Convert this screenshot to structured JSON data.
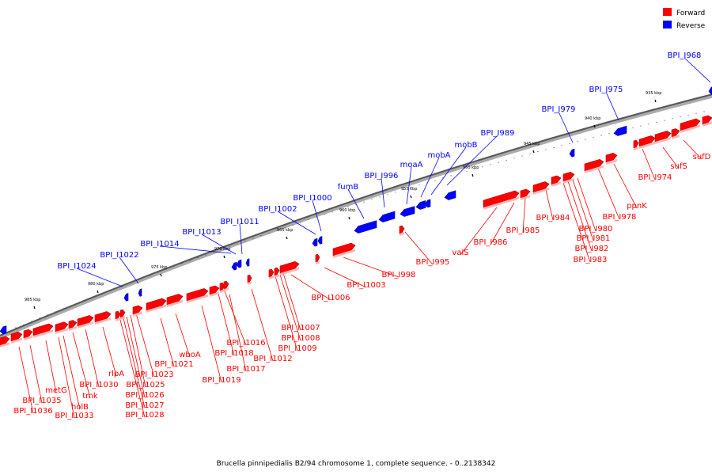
{
  "legend": {
    "forward_label": "Forward",
    "reverse_label": "Reverse",
    "forward_color": "#ff0000",
    "reverse_color": "#0000ff"
  },
  "caption": "Brucella pinnipedialis B2/94 chromosome 1, complete sequence. - 0..2138342",
  "kbp_marks": [
    {
      "kbp": 935,
      "text": "935 kbp"
    },
    {
      "kbp": 940,
      "text": "940 kbp"
    },
    {
      "kbp": 945,
      "text": "945 kbp"
    },
    {
      "kbp": 950,
      "text": "950 kbp"
    },
    {
      "kbp": 955,
      "text": "955 kbp"
    },
    {
      "kbp": 960,
      "text": "960 kbp"
    },
    {
      "kbp": 965,
      "text": "965 kbp"
    },
    {
      "kbp": 970,
      "text": "970 kbp"
    },
    {
      "kbp": 975,
      "text": "975 kbp"
    },
    {
      "kbp": 980,
      "text": "980 kbp"
    },
    {
      "kbp": 985,
      "text": "985 kbp"
    }
  ],
  "reverse_genes": [
    "BPI_I968",
    "BPI_I975",
    "BPI_I979",
    "BPI_I989",
    "mobB",
    "mobA",
    "moaA",
    "BPI_I996",
    "fumB",
    "BPI_I1000",
    "BPI_I1002",
    "BPI_I1011",
    "BPI_I1013",
    "BPI_I1014",
    "BPI_I1022",
    "BPI_I1024"
  ],
  "forward_genes": [
    "sufD",
    "sufS",
    "BPI_I974",
    "ppnK",
    "BPI_I978",
    "BPI_I980",
    "BPI_I981",
    "BPI_I982",
    "BPI_I983",
    "BPI_I984",
    "BPI_I985",
    "BPI_I986",
    "valS",
    "BPI_I995",
    "BPI_I998",
    "BPI_I1003",
    "BPI_I1006",
    "BPI_I1007",
    "BPI_I1008",
    "BPI_I1009",
    "BPI_I1012",
    "BPI_I1016",
    "BPI_I1017",
    "BPI_I1018",
    "BPI_I1019",
    "wboA",
    "BPI_I1021",
    "BPI_I1023",
    "BPI_I1025",
    "BPI_I1026",
    "BPI_I1027",
    "BPI_I1028",
    "rlpA",
    "BPI_I1030",
    "tmk",
    "holB",
    "BPI_I1033",
    "metG",
    "BPI_I1035",
    "BPI_I1036"
  ]
}
